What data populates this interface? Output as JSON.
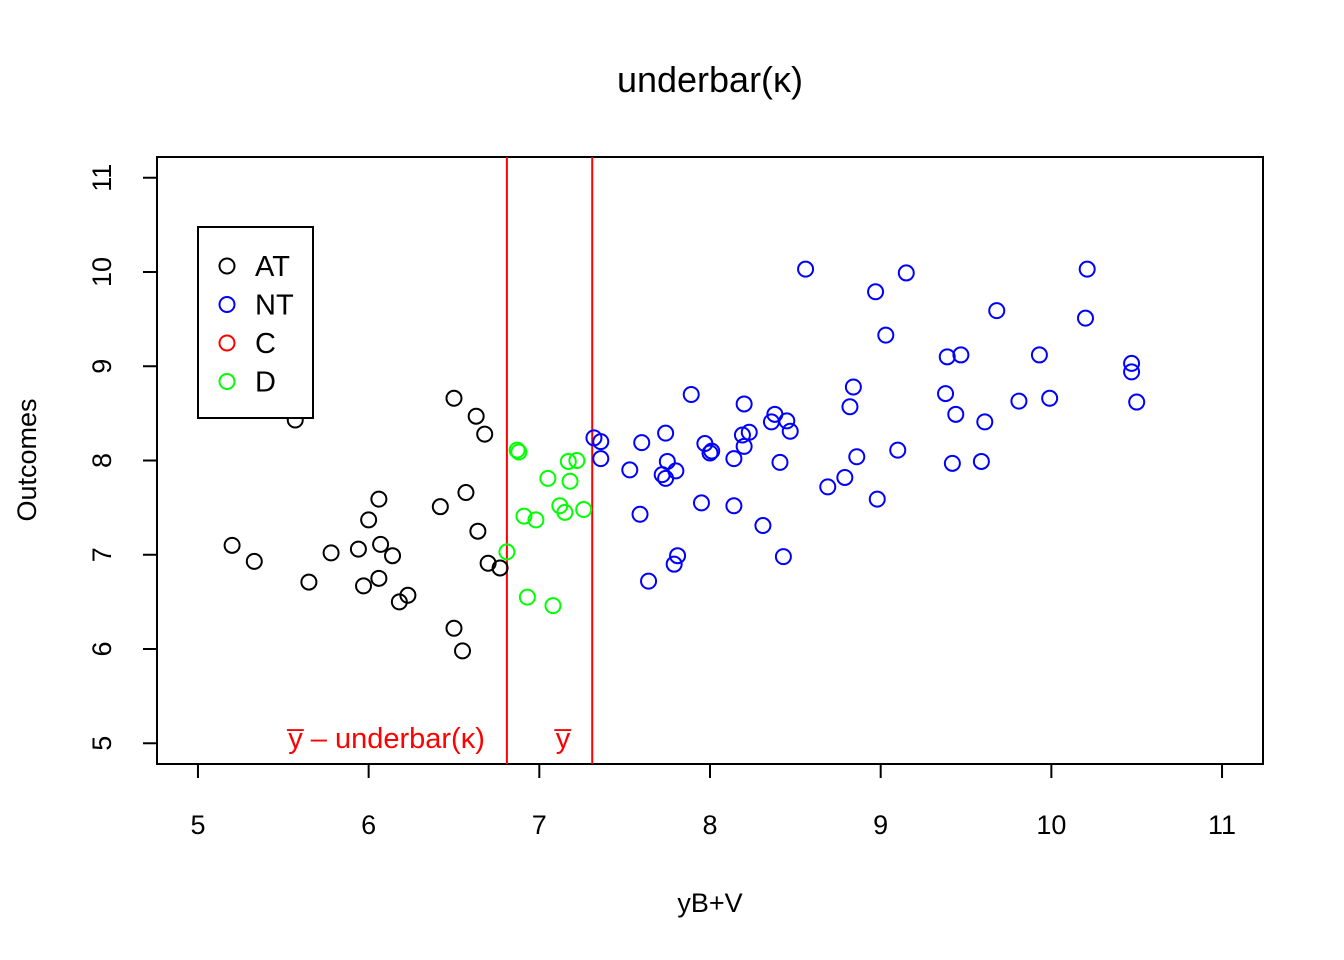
{
  "chart_data": {
    "type": "scatter",
    "title": "underbar(κ)",
    "xlabel": "yB+V",
    "ylabel": "Outcomes",
    "xlim": [
      4.76,
      11.24
    ],
    "ylim": [
      4.78,
      11.22
    ],
    "x_ticks": [
      "5",
      "6",
      "7",
      "8",
      "9",
      "10",
      "11"
    ],
    "y_ticks": [
      "5",
      "6",
      "7",
      "8",
      "9",
      "10",
      "11"
    ],
    "grid": false,
    "legend_position": "top-left",
    "series": [
      {
        "name": "AT",
        "color": "#000000",
        "points": [
          [
            5.2,
            7.1
          ],
          [
            5.33,
            6.93
          ],
          [
            5.57,
            8.43
          ],
          [
            5.65,
            6.71
          ],
          [
            5.78,
            7.02
          ],
          [
            5.94,
            7.06
          ],
          [
            5.97,
            6.67
          ],
          [
            6.0,
            7.37
          ],
          [
            6.06,
            7.59
          ],
          [
            6.06,
            6.75
          ],
          [
            6.07,
            7.11
          ],
          [
            6.14,
            6.99
          ],
          [
            6.18,
            6.5
          ],
          [
            6.23,
            6.57
          ],
          [
            6.42,
            7.51
          ],
          [
            6.5,
            8.66
          ],
          [
            6.5,
            6.22
          ],
          [
            6.55,
            5.98
          ],
          [
            6.57,
            7.66
          ],
          [
            6.63,
            8.47
          ],
          [
            6.64,
            7.25
          ],
          [
            6.68,
            8.28
          ],
          [
            6.7,
            6.91
          ],
          [
            6.77,
            6.86
          ]
        ]
      },
      {
        "name": "NT",
        "color": "#0000ff",
        "points": [
          [
            7.32,
            8.24
          ],
          [
            7.36,
            8.2
          ],
          [
            7.36,
            8.02
          ],
          [
            7.53,
            7.9
          ],
          [
            7.59,
            7.43
          ],
          [
            7.6,
            8.19
          ],
          [
            7.64,
            6.72
          ],
          [
            7.72,
            7.85
          ],
          [
            7.74,
            7.81
          ],
          [
            7.74,
            8.29
          ],
          [
            7.75,
            7.99
          ],
          [
            7.79,
            6.9
          ],
          [
            7.8,
            7.89
          ],
          [
            7.81,
            6.99
          ],
          [
            7.89,
            8.7
          ],
          [
            7.95,
            7.55
          ],
          [
            7.97,
            8.18
          ],
          [
            8.0,
            8.08
          ],
          [
            8.01,
            8.1
          ],
          [
            8.14,
            7.52
          ],
          [
            8.14,
            8.02
          ],
          [
            8.19,
            8.27
          ],
          [
            8.2,
            8.6
          ],
          [
            8.2,
            8.15
          ],
          [
            8.23,
            8.3
          ],
          [
            8.31,
            7.31
          ],
          [
            8.36,
            8.41
          ],
          [
            8.38,
            8.49
          ],
          [
            8.41,
            7.98
          ],
          [
            8.43,
            6.98
          ],
          [
            8.45,
            8.42
          ],
          [
            8.47,
            8.31
          ],
          [
            8.56,
            10.03
          ],
          [
            8.69,
            7.72
          ],
          [
            8.79,
            7.82
          ],
          [
            8.82,
            8.57
          ],
          [
            8.84,
            8.78
          ],
          [
            8.86,
            8.04
          ],
          [
            8.97,
            9.79
          ],
          [
            8.98,
            7.59
          ],
          [
            9.03,
            9.33
          ],
          [
            9.1,
            8.11
          ],
          [
            9.15,
            9.99
          ],
          [
            9.38,
            8.71
          ],
          [
            9.39,
            9.1
          ],
          [
            9.42,
            7.97
          ],
          [
            9.44,
            8.49
          ],
          [
            9.47,
            9.12
          ],
          [
            9.59,
            7.99
          ],
          [
            9.61,
            8.41
          ],
          [
            9.68,
            9.59
          ],
          [
            9.81,
            8.63
          ],
          [
            9.93,
            9.12
          ],
          [
            9.99,
            8.66
          ],
          [
            10.2,
            9.51
          ],
          [
            10.21,
            10.03
          ],
          [
            10.47,
            9.03
          ],
          [
            10.47,
            8.94
          ],
          [
            10.5,
            8.62
          ]
        ]
      },
      {
        "name": "C",
        "color": "#ff0000",
        "points": []
      },
      {
        "name": "D",
        "color": "#00ff00",
        "points": [
          [
            6.81,
            7.03
          ],
          [
            6.87,
            8.11
          ],
          [
            6.88,
            8.09
          ],
          [
            6.91,
            7.41
          ],
          [
            6.93,
            6.55
          ],
          [
            6.98,
            7.37
          ],
          [
            7.05,
            7.81
          ],
          [
            7.08,
            6.46
          ],
          [
            7.12,
            7.52
          ],
          [
            7.15,
            7.45
          ],
          [
            7.17,
            7.99
          ],
          [
            7.18,
            7.78
          ],
          [
            7.22,
            8.0
          ],
          [
            7.26,
            7.48
          ]
        ]
      }
    ],
    "vlines": [
      {
        "x": 6.81,
        "color": "#ff0000",
        "label": "y̅ – underbar(κ)"
      },
      {
        "x": 7.31,
        "color": "#ff0000",
        "label": "y̅"
      }
    ]
  }
}
